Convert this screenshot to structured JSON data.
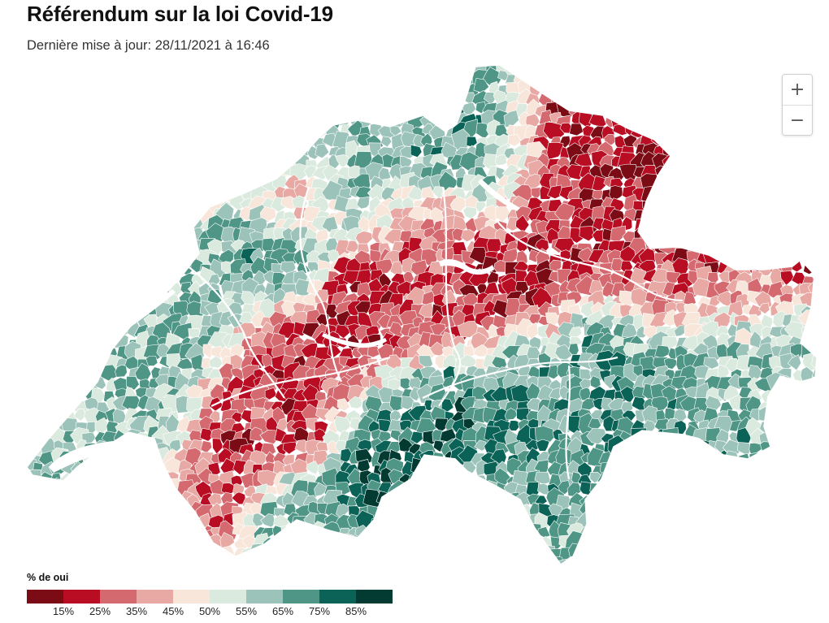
{
  "header": {
    "title": "Référendum sur la loi Covid-19",
    "subtitle": "Dernière mise à jour: 28/11/2021 à 16:46"
  },
  "map": {
    "country": "Switzerland",
    "unit": "communes",
    "metric": "% de oui"
  },
  "zoom_controls": {
    "zoom_in": "+",
    "zoom_out": "−"
  },
  "legend": {
    "title": "% de oui",
    "colors": [
      "#7b0c16",
      "#b80d22",
      "#d4696f",
      "#e8a8a4",
      "#f8e6da",
      "#dbeade",
      "#9cc3b9",
      "#4f9686",
      "#0b6257",
      "#033b33"
    ],
    "labels": [
      "15%",
      "25%",
      "35%",
      "45%",
      "50%",
      "55%",
      "65%",
      "75%",
      "85%"
    ]
  }
}
